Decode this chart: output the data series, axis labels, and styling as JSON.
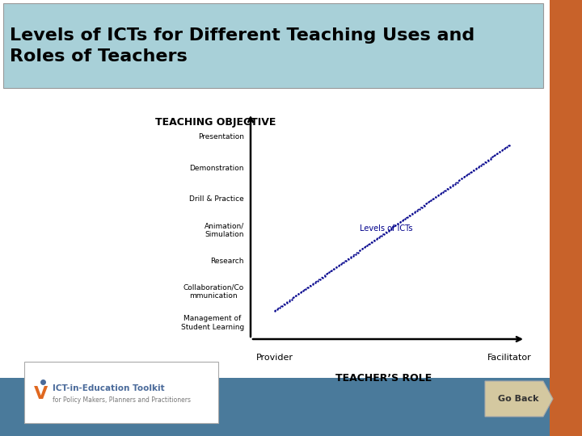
{
  "title": "Levels of ICTs for Different Teaching Uses and\nRoles of Teachers",
  "title_bg": "#a8d0d8",
  "title_fontsize": 16,
  "teaching_objective_label": "TEACHING OBJECTIVE",
  "teachers_role_label": "TEACHER’S ROLE",
  "y_labels": [
    "Presentation",
    "Demonstration",
    "Drill & Practice",
    "Animation/\nSimulation",
    "Research",
    "Collaboration/Co\nmmunication",
    "Management of\nStudent Learning"
  ],
  "x_labels": [
    "Provider",
    "Facilitator"
  ],
  "line_label": "Levels of ICTs",
  "line_color": "#00008B",
  "bg_color": "#ffffff",
  "slide_bg": "#ffffff",
  "right_bar_color": "#c8622a",
  "bottom_bar_color": "#4a7a9b",
  "axis_color": "#000000"
}
